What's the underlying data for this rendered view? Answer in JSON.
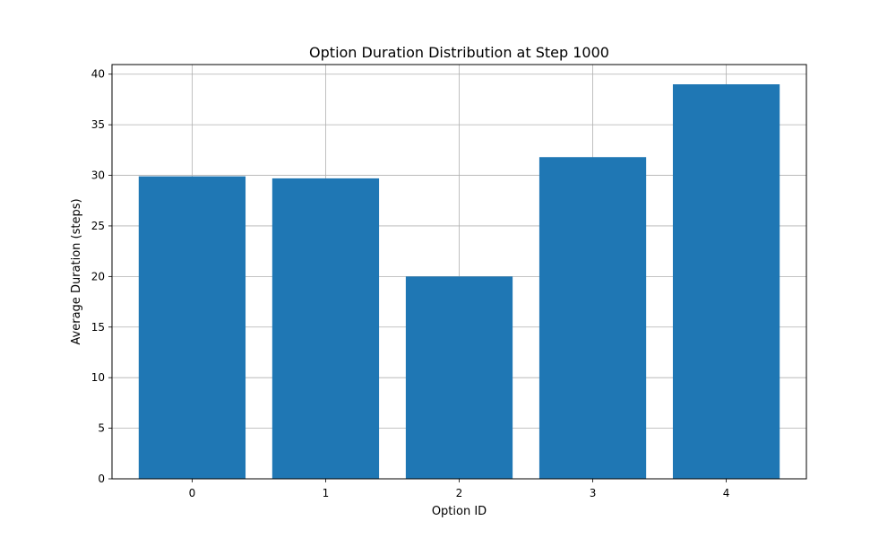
{
  "chart_data": {
    "type": "bar",
    "title": "Option Duration Distribution at Step 1000",
    "xlabel": "Option ID",
    "ylabel": "Average Duration (steps)",
    "categories": [
      "0",
      "1",
      "2",
      "3",
      "4"
    ],
    "values": [
      29.9,
      29.7,
      20.0,
      31.8,
      39.0
    ],
    "ylim": [
      0,
      40.95
    ],
    "yticks": [
      "0",
      "5",
      "10",
      "15",
      "20",
      "25",
      "30",
      "35",
      "40"
    ],
    "grid": true,
    "bar_color": "#1f77b4",
    "grid_color": "#b0b0b0"
  }
}
